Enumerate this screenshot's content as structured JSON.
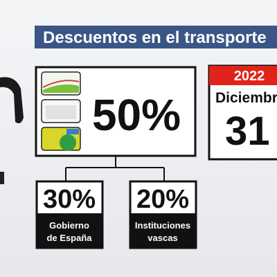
{
  "title": "Descuentos en el transporte",
  "main": {
    "value": "50%"
  },
  "splits": [
    {
      "value": "30%",
      "label": [
        "Gobierno",
        "de España"
      ]
    },
    {
      "value": "20%",
      "label": [
        "Instituciones",
        "vascas"
      ]
    }
  ],
  "calendar": {
    "year": "2022",
    "month": "Diciembre",
    "day": "31"
  }
}
